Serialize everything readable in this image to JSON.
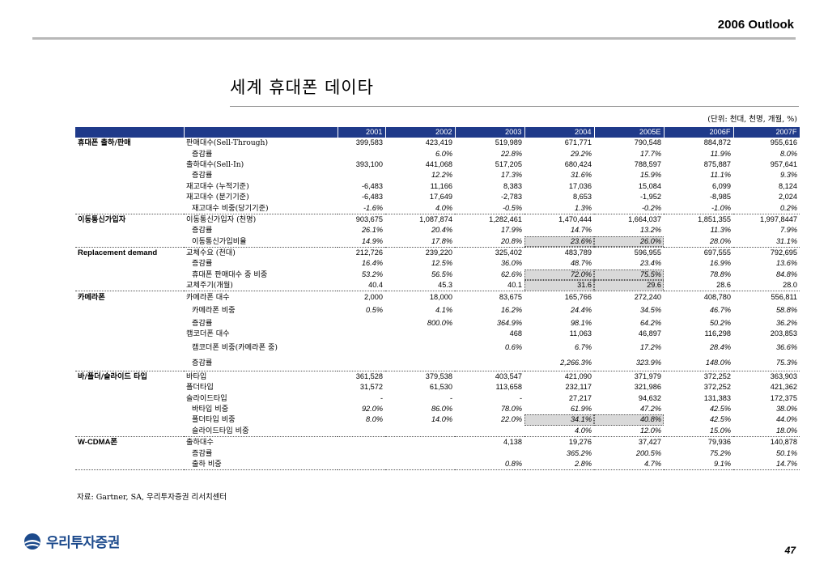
{
  "header": {
    "section_title": "2006 Outlook"
  },
  "title": "세계 휴대폰 데이타",
  "unit_note": "(단위: 천대, 천명, 개월, %)",
  "table": {
    "columns": [
      "",
      "",
      "2001",
      "2002",
      "2003",
      "2004",
      "2005E",
      "2006F",
      "2007F"
    ],
    "rows": [
      {
        "cat": "휴대폰 출하/판매",
        "item": "판매대수(Sell-Through)",
        "sub": false,
        "it": false,
        "v": [
          "399,583",
          "423,419",
          "519,989",
          "671,771",
          "790,548",
          "884,872",
          "955,616"
        ]
      },
      {
        "cat": "",
        "item": "증감률",
        "sub": true,
        "it": true,
        "v": [
          "",
          "6.0%",
          "22.8%",
          "29.2%",
          "17.7%",
          "11.9%",
          "8.0%"
        ]
      },
      {
        "cat": "",
        "item": "출하대수(Sell-In)",
        "sub": false,
        "it": false,
        "v": [
          "393,100",
          "441,068",
          "517,205",
          "680,424",
          "788,597",
          "875,887",
          "957,641"
        ]
      },
      {
        "cat": "",
        "item": "증감률",
        "sub": true,
        "it": true,
        "v": [
          "",
          "12.2%",
          "17.3%",
          "31.6%",
          "15.9%",
          "11.1%",
          "9.3%"
        ]
      },
      {
        "cat": "",
        "item": "재고대수 (누적기준)",
        "sub": false,
        "it": false,
        "v": [
          "-6,483",
          "11,166",
          "8,383",
          "17,036",
          "15,084",
          "6,099",
          "8,124"
        ]
      },
      {
        "cat": "",
        "item": "재고대수 (분기기준)",
        "sub": false,
        "it": false,
        "v": [
          "-6,483",
          "17,649",
          "-2,783",
          "8,653",
          "-1,952",
          "-8,985",
          "2,024"
        ]
      },
      {
        "cat": "",
        "item": "재고대수 비중(당기기준)",
        "sub": true,
        "it": true,
        "v": [
          "-1.6%",
          "4.0%",
          "-0.5%",
          "1.3%",
          "-0.2%",
          "-1.0%",
          "0.2%"
        ]
      },
      {
        "cat": "이동통신가입자",
        "item": "이동통신가입자 (천명)",
        "sub": false,
        "it": false,
        "v": [
          "903,675",
          "1,087,874",
          "1,282,461",
          "1,470,444",
          "1,664,037",
          "1,851,355",
          "1,997,8447"
        ]
      },
      {
        "cat": "",
        "item": "증감률",
        "sub": true,
        "it": true,
        "v": [
          "26.1%",
          "20.4%",
          "17.9%",
          "14.7%",
          "13.2%",
          "11.3%",
          "7.9%"
        ]
      },
      {
        "cat": "",
        "item": "이동통신가입비율",
        "sub": true,
        "it": true,
        "v": [
          "14.9%",
          "17.8%",
          "20.8%",
          "23.6%",
          "26.0%",
          "28.0%",
          "31.1%"
        ]
      },
      {
        "cat": "Replacement demand",
        "item": "교체수요 (천대)",
        "sub": false,
        "it": false,
        "v": [
          "212,726",
          "239,220",
          "325,402",
          "483,789",
          "596,955",
          "697,555",
          "792,695"
        ]
      },
      {
        "cat": "",
        "item": "증감률",
        "sub": true,
        "it": true,
        "v": [
          "16.4%",
          "12.5%",
          "36.0%",
          "48.7%",
          "23.4%",
          "16.9%",
          "13.6%"
        ]
      },
      {
        "cat": "",
        "item": "휴대폰 판매대수 중 비중",
        "sub": true,
        "it": true,
        "v": [
          "53.2%",
          "56.5%",
          "62.6%",
          "72.0%",
          "75.5%",
          "78.8%",
          "84.8%"
        ]
      },
      {
        "cat": "",
        "item": "교체주기(개월)",
        "sub": false,
        "it": false,
        "v": [
          "40.4",
          "45.3",
          "40.1",
          "31.6",
          "29.6",
          "28.6",
          "28.0"
        ]
      },
      {
        "cat": "카메라폰",
        "item": "카메라폰 대수",
        "sub": false,
        "it": false,
        "v": [
          "2,000",
          "18,000",
          "83,675",
          "165,766",
          "272,240",
          "408,780",
          "556,811"
        ]
      },
      {
        "cat": "",
        "item": "카메라폰 비중",
        "sub": true,
        "it": true,
        "v": [
          "0.5%",
          "4.1%",
          "16.2%",
          "24.4%",
          "34.5%",
          "46.7%",
          "58.8%"
        ]
      },
      {
        "cat": "",
        "item": "증감률",
        "sub": true,
        "it": true,
        "v": [
          "",
          "800.0%",
          "364.9%",
          "98.1%",
          "64.2%",
          "50.2%",
          "36.2%"
        ]
      },
      {
        "cat": "",
        "item": "캠코더폰 대수",
        "sub": false,
        "it": false,
        "v": [
          "",
          "",
          "468",
          "11,063",
          "46,897",
          "116,298",
          "203,853"
        ]
      },
      {
        "cat": "",
        "item": "캠코더폰 비중(카메라폰 중)",
        "sub": true,
        "it": true,
        "v": [
          "",
          "",
          "0.6%",
          "6.7%",
          "17.2%",
          "28.4%",
          "36.6%"
        ]
      },
      {
        "cat": "",
        "item": "증감률",
        "sub": true,
        "it": true,
        "v": [
          "",
          "",
          "",
          "2,266.3%",
          "323.9%",
          "148.0%",
          "75.3%"
        ]
      },
      {
        "cat": "바/폴더/슬라이드 타입",
        "item": "바타입",
        "sub": false,
        "it": false,
        "v": [
          "361,528",
          "379,538",
          "403,547",
          "421,090",
          "371,979",
          "372,252",
          "363,903"
        ]
      },
      {
        "cat": "",
        "item": "폴더타입",
        "sub": false,
        "it": false,
        "v": [
          "31,572",
          "61,530",
          "113,658",
          "232,117",
          "321,986",
          "372,252",
          "421,362"
        ]
      },
      {
        "cat": "",
        "item": "슬라이드타입",
        "sub": false,
        "it": false,
        "v": [
          "-",
          "-",
          "-",
          "27,217",
          "94,632",
          "131,383",
          "172,375"
        ]
      },
      {
        "cat": "",
        "item": "바타입 비중",
        "sub": true,
        "it": true,
        "v": [
          "92.0%",
          "86.0%",
          "78.0%",
          "61.9%",
          "47.2%",
          "42.5%",
          "38.0%"
        ]
      },
      {
        "cat": "",
        "item": "폴더타입 비중",
        "sub": true,
        "it": true,
        "v": [
          "8.0%",
          "14.0%",
          "22.0%",
          "34.1%",
          "40.8%",
          "42.5%",
          "44.0%"
        ]
      },
      {
        "cat": "",
        "item": "슬라이드타입 비중",
        "sub": true,
        "it": true,
        "v": [
          "",
          "",
          "",
          "4.0%",
          "12.0%",
          "15.0%",
          "18.0%"
        ]
      },
      {
        "cat": "W-CDMA폰",
        "item": "출하대수",
        "sub": false,
        "it": false,
        "v": [
          "",
          "",
          "4,138",
          "19,276",
          "37,427",
          "79,936",
          "140,878"
        ]
      },
      {
        "cat": "",
        "item": "증감률",
        "sub": true,
        "it": true,
        "v": [
          "",
          "",
          "",
          "365.2%",
          "200.5%",
          "75.2%",
          "50.1%"
        ]
      },
      {
        "cat": "",
        "item": "출하 비중",
        "sub": true,
        "it": true,
        "v": [
          "",
          "",
          "0.8%",
          "2.8%",
          "4.7%",
          "9.1%",
          "14.7%"
        ]
      }
    ]
  },
  "source": "자료: Gartner, SA, 우리투자증권 리서치센터",
  "footer": {
    "logo_text": "우리투자증권",
    "page_number": "47"
  }
}
